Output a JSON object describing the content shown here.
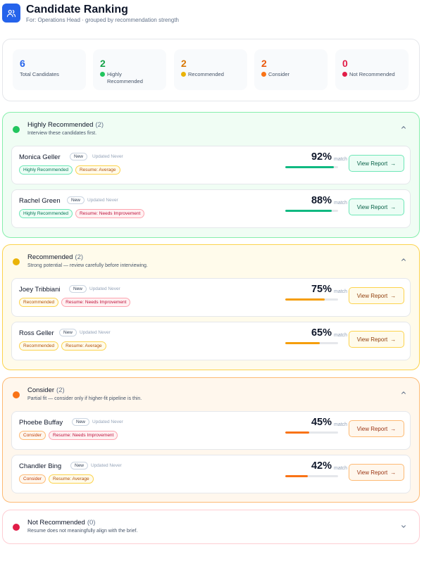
{
  "header": {
    "title": "Candidate Ranking",
    "subtitle": "For: Operations Head · grouped by recommendation strength",
    "icon": "users-icon"
  },
  "stats": [
    {
      "value": "6",
      "label": "Total Candidates",
      "color": "#2563eb"
    },
    {
      "value": "2",
      "label": "Highly Recommended",
      "color": "#16a34a",
      "dot": "#22c55e"
    },
    {
      "value": "2",
      "label": "Recommended",
      "color": "#d97706",
      "dot": "#eab308"
    },
    {
      "value": "2",
      "label": "Consider",
      "color": "#ea580c",
      "dot": "#f97316"
    },
    {
      "value": "0",
      "label": "Not Recommended",
      "color": "#e11d48",
      "dot": "#e11d48"
    }
  ],
  "groups": [
    {
      "title": "Highly Recommended",
      "count": "(2)",
      "description": "Interview these candidates first.",
      "dot_color": "#22c55e",
      "border_color": "#86efac",
      "bg_color": "#f0fdf4",
      "candidates": [
        {
          "name": "Monica Geller",
          "status": "New",
          "updated": "Updated Never",
          "rec_badge": "Highly Recommended",
          "resume_badge": "Resume: Average",
          "match": "92%",
          "match_value": 92,
          "match_label": "match",
          "action": "View Report"
        },
        {
          "name": "Rachel Green",
          "status": "New",
          "updated": "Updated Never",
          "rec_badge": "Highly Recommended",
          "resume_badge": "Resume: Needs Improvement",
          "match": "88%",
          "match_value": 88,
          "match_label": "match",
          "action": "View Report"
        }
      ]
    },
    {
      "title": "Recommended",
      "count": "(2)",
      "description": "Strong potential — review carefully before interviewing.",
      "dot_color": "#eab308",
      "border_color": "#fcd34d",
      "bg_color": "#fffbeb",
      "candidates": [
        {
          "name": "Joey Tribbiani",
          "status": "New",
          "updated": "Updated Never",
          "rec_badge": "Recommended",
          "resume_badge": "Resume: Needs Improvement",
          "match": "75%",
          "match_value": 75,
          "match_label": "match",
          "action": "View Report"
        },
        {
          "name": "Ross Geller",
          "status": "New",
          "updated": "Updated Never",
          "rec_badge": "Recommended",
          "resume_badge": "Resume: Average",
          "match": "65%",
          "match_value": 65,
          "match_label": "match",
          "action": "View Report"
        }
      ]
    },
    {
      "title": "Consider",
      "count": "(2)",
      "description": "Partial fit — consider only if higher-fit pipeline is thin.",
      "dot_color": "#f97316",
      "border_color": "#fdba74",
      "bg_color": "#fff7ed",
      "candidates": [
        {
          "name": "Phoebe Buffay",
          "status": "New",
          "updated": "Updated Never",
          "rec_badge": "Consider",
          "resume_badge": "Resume: Needs Improvement",
          "match": "45%",
          "match_value": 45,
          "match_label": "match",
          "action": "View Report"
        },
        {
          "name": "Chandler Bing",
          "status": "New",
          "updated": "Updated Never",
          "rec_badge": "Consider",
          "resume_badge": "Resume: Average",
          "match": "42%",
          "match_value": 42,
          "match_label": "match",
          "action": "View Report"
        }
      ]
    },
    {
      "title": "Not Recommended",
      "count": "(0)",
      "description": "Resume does not meaningfully align with the brief.",
      "dot_color": "#e11d48",
      "border_color": "#fecdd3",
      "bg_color": "#ffffff",
      "collapsed": true,
      "candidates": []
    }
  ]
}
